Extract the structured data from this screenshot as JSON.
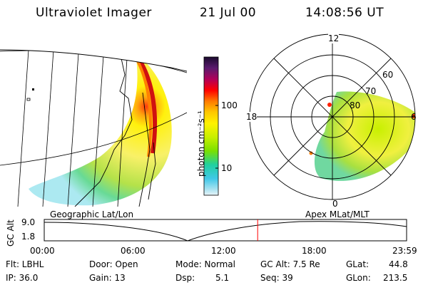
{
  "header": {
    "title": "Ultraviolet Imager",
    "date": "21 Jul 00",
    "time": "14:08:56 UT"
  },
  "geo_panel": {
    "label": "Geographic Lat/Lon"
  },
  "colorbar": {
    "unit_label": "photon cm⁻²s⁻¹",
    "ticks": [
      "100",
      "10"
    ],
    "colors": [
      "#1a0a2e",
      "#5a1a6e",
      "#b0005a",
      "#ff0000",
      "#ff7a00",
      "#ffc800",
      "#fff200",
      "#c8f000",
      "#7ae000",
      "#20d0a0",
      "#40c8e8",
      "#a0e0f0",
      "#e8f4f8"
    ]
  },
  "polar_panel": {
    "label": "Apex MLat/MLT",
    "mlt_labels": [
      "12",
      "18",
      "6",
      "0"
    ],
    "lat_labels": [
      "60",
      "70",
      "80"
    ]
  },
  "timeline": {
    "yaxis_label": "GC Alt",
    "ytick_top": "9.0",
    "ytick_bottom": "1.8",
    "xticks": [
      "00:00",
      "06:00",
      "12:00",
      "18:00",
      "23:59"
    ],
    "current_time_fraction": 0.589,
    "marker_color": "#ff0000"
  },
  "info": {
    "flt": "Flt: LBHL",
    "ip": "IP: 36.0",
    "door": "Door: Open",
    "gain": "Gain: 13",
    "mode": "Mode: Normal",
    "dsp_label": "Dsp:",
    "dsp_value": "5.1",
    "gc_alt": "GC Alt: 7.5 Re",
    "seq": "Seq: 39",
    "glat_label": "GLat:",
    "glat_value": "44.8",
    "glon_label": "GLon:",
    "glon_value": "213.5"
  }
}
